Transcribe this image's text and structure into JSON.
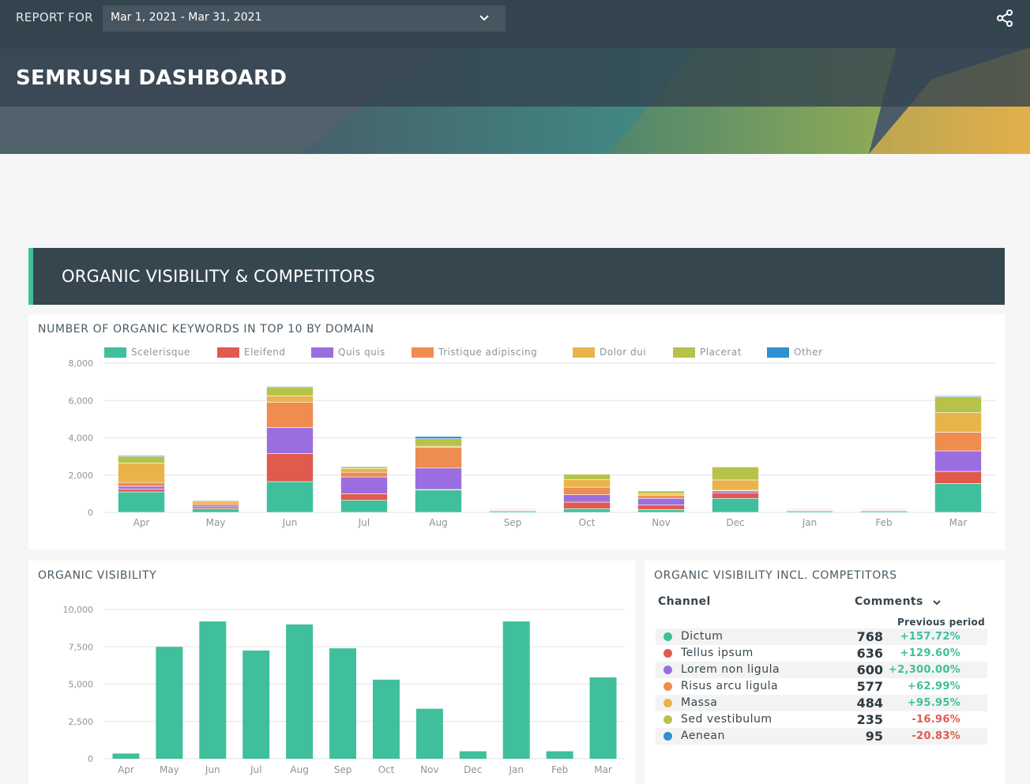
{
  "header": {
    "report_for_label": "REPORT FOR",
    "date_range": "Mar 1, 2021 - Mar 31, 2021",
    "dashboard_title": "SEMRUSH DASHBOARD"
  },
  "section": {
    "title": "ORGANIC VISIBILITY & COMPETITORS"
  },
  "keywords_chart": {
    "title": "NUMBER OF ORGANIC KEYWORDS IN TOP 10 BY DOMAIN"
  },
  "visibility_chart": {
    "title": "ORGANIC VISIBILITY"
  },
  "competitors_table": {
    "title": "ORGANIC VISIBILITY INCL. COMPETITORS",
    "col_channel": "Channel",
    "col_comments": "Comments",
    "col_previous": "Previous period",
    "rows": [
      {
        "name": "Dictum",
        "value": "768",
        "change": "+157.72%",
        "color": "#3fbf9c",
        "trend": "up"
      },
      {
        "name": "Tellus ipsum",
        "value": "636",
        "change": "+129.60%",
        "color": "#e05a4e",
        "trend": "up"
      },
      {
        "name": "Lorem non ligula",
        "value": "600",
        "change": "+2,300.00%",
        "color": "#9b6ee0",
        "trend": "up"
      },
      {
        "name": "Risus arcu ligula",
        "value": "577",
        "change": "+62.99%",
        "color": "#ef8c4f",
        "trend": "up"
      },
      {
        "name": "Massa",
        "value": "484",
        "change": "+95.95%",
        "color": "#e8b44a",
        "trend": "up"
      },
      {
        "name": "Sed vestibulum",
        "value": "235",
        "change": "-16.96%",
        "color": "#b7c24a",
        "trend": "down"
      },
      {
        "name": "Aenean",
        "value": "95",
        "change": "-20.83%",
        "color": "#2f8fd0",
        "trend": "down"
      }
    ]
  },
  "icons": {
    "dropdown": "chevron-down-icon",
    "share": "share-icon",
    "sort": "chevron-down-icon"
  },
  "chart_data": [
    {
      "type": "bar",
      "stacked": true,
      "title": "NUMBER OF ORGANIC KEYWORDS IN TOP 10 BY DOMAIN",
      "categories": [
        "Apr",
        "May",
        "Jun",
        "Jul",
        "Aug",
        "Sep",
        "Oct",
        "Nov",
        "Dec",
        "Jan",
        "Feb",
        "Mar"
      ],
      "ylim": [
        0,
        8000
      ],
      "yticks": [
        0,
        2000,
        4000,
        6000,
        8000
      ],
      "ytick_labels": [
        "0",
        "2,000",
        "4,000",
        "6,000",
        "8,000"
      ],
      "legend_position": "top",
      "grid": true,
      "series": [
        {
          "name": "Scelerisque",
          "color": "#3fbf9c",
          "values": [
            1100,
            200,
            1650,
            650,
            1200,
            60,
            200,
            150,
            750,
            60,
            60,
            1550
          ]
        },
        {
          "name": "Eleifend",
          "color": "#e05a4e",
          "values": [
            150,
            100,
            1500,
            350,
            30,
            40,
            350,
            250,
            300,
            40,
            40,
            650
          ]
        },
        {
          "name": "Quis quis",
          "color": "#9b6ee0",
          "values": [
            150,
            100,
            1400,
            900,
            1150,
            30,
            400,
            350,
            100,
            30,
            30,
            1100
          ]
        },
        {
          "name": "Tristique adipiscing",
          "color": "#ef8c4f",
          "values": [
            200,
            100,
            1350,
            250,
            1100,
            30,
            400,
            150,
            40,
            30,
            30,
            1000
          ]
        },
        {
          "name": "Dolor dui",
          "color": "#e8b44a",
          "values": [
            1050,
            100,
            350,
            200,
            70,
            30,
            400,
            100,
            550,
            30,
            30,
            1050
          ]
        },
        {
          "name": "Placerat",
          "color": "#b7c24a",
          "values": [
            350,
            50,
            450,
            100,
            400,
            30,
            300,
            150,
            700,
            30,
            30,
            850
          ]
        },
        {
          "name": "Other",
          "color": "#2f8fd0",
          "values": [
            50,
            20,
            50,
            20,
            120,
            10,
            20,
            10,
            20,
            10,
            10,
            50
          ]
        }
      ]
    },
    {
      "type": "bar",
      "title": "ORGANIC VISIBILITY",
      "categories": [
        "Apr",
        "May",
        "Jun",
        "Jul",
        "Aug",
        "Sep",
        "Oct",
        "Nov",
        "Dec",
        "Jan",
        "Feb",
        "Mar"
      ],
      "ylim": [
        0,
        10000
      ],
      "yticks": [
        0,
        2500,
        5000,
        7500,
        10000
      ],
      "ytick_labels": [
        "0",
        "2,500",
        "5,000",
        "7,500",
        "10,000"
      ],
      "grid": true,
      "series": [
        {
          "color": "#3fbf9c",
          "values": [
            350,
            7500,
            9200,
            7250,
            9000,
            7400,
            5300,
            3350,
            500,
            9200,
            500,
            5450
          ]
        }
      ]
    }
  ]
}
